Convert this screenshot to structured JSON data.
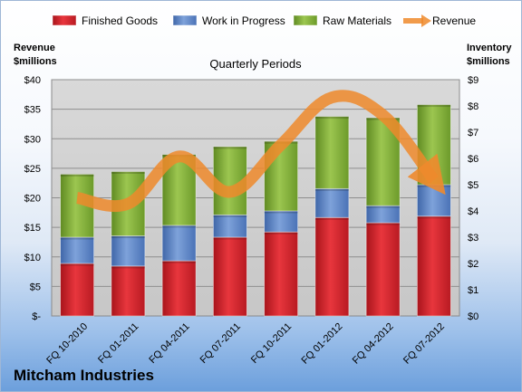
{
  "chart_data": {
    "type": "bar",
    "stacked": true,
    "title": "Quarterly Periods",
    "categories": [
      "FQ 10-2010",
      "FQ 01-2011",
      "FQ 04-2011",
      "FQ 07-2011",
      "FQ 10-2011",
      "FQ 01-2012",
      "FQ 04-2012",
      "FQ 07-2012"
    ],
    "series": [
      {
        "name": "Finished Goods",
        "axis": "right",
        "color": "#d8262e",
        "values": [
          2.0,
          1.9,
          2.1,
          3.0,
          3.2,
          3.75,
          3.55,
          3.8
        ]
      },
      {
        "name": "Work in Progress",
        "axis": "right",
        "color": "#5a84c6",
        "values": [
          1.0,
          1.15,
          1.35,
          0.85,
          0.8,
          1.1,
          0.65,
          1.2
        ]
      },
      {
        "name": "Raw Materials",
        "axis": "right",
        "color": "#8db83f",
        "values": [
          2.4,
          2.45,
          2.7,
          2.6,
          2.65,
          2.75,
          3.35,
          3.05
        ]
      }
    ],
    "line": {
      "name": "Revenue",
      "axis": "left",
      "color": "#ee8a2c",
      "values": [
        20.0,
        19.0,
        27.0,
        21.0,
        29.0,
        37.0,
        34.0,
        23.0
      ]
    },
    "left_axis": {
      "title_line1": "Revenue",
      "title_line2": "$millions",
      "ylim": [
        0,
        40
      ],
      "ticks": [
        "$-",
        "$5",
        "$10",
        "$15",
        "$20",
        "$25",
        "$30",
        "$35",
        "$40"
      ]
    },
    "right_axis": {
      "title_line1": "Inventory",
      "title_line2": "$millions",
      "ylim": [
        0,
        9
      ],
      "ticks": [
        "$0",
        "$1",
        "$2",
        "$3",
        "$4",
        "$5",
        "$6",
        "$7",
        "$8",
        "$9"
      ]
    },
    "legend": {
      "position": "top",
      "items": [
        "Finished Goods",
        "Work in Progress",
        "Raw Materials",
        "Revenue"
      ]
    },
    "grid": true
  },
  "company": "Mitcham Industries"
}
